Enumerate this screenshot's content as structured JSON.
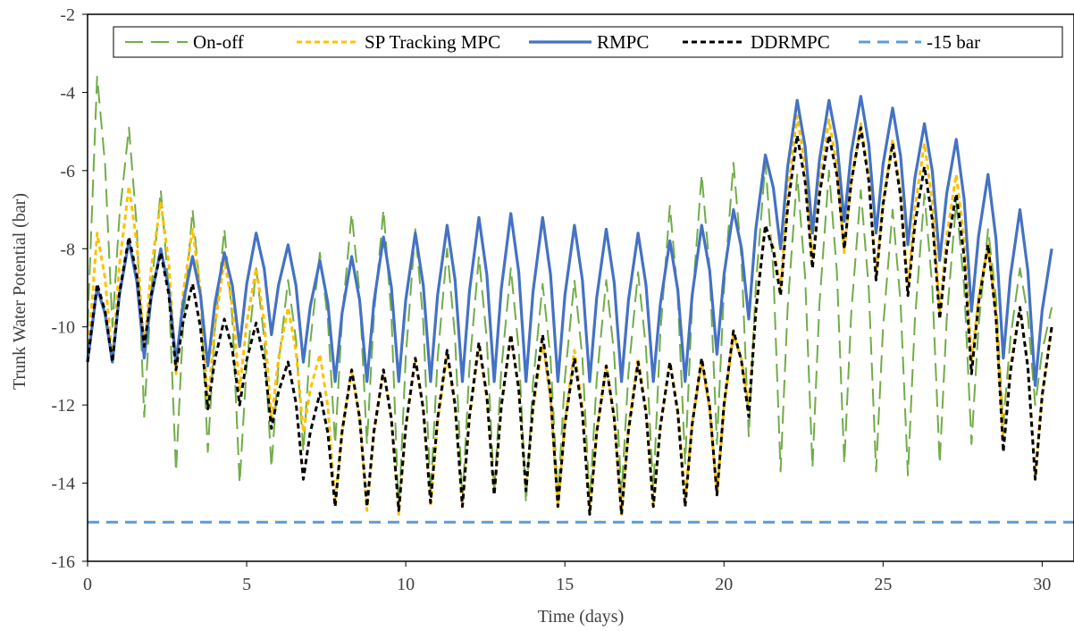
{
  "chart_data": {
    "type": "line",
    "title": "",
    "xlabel": "Time (days)",
    "ylabel": "Trunk Water Potential (bar)",
    "xlim": [
      0,
      31
    ],
    "ylim": [
      -16,
      -2
    ],
    "xticks": [
      "0",
      "5",
      "10",
      "15",
      "20",
      "25",
      "30"
    ],
    "xtick_values": [
      0,
      5,
      10,
      15,
      20,
      25,
      30
    ],
    "yticks": [
      "-2",
      "-4",
      "-6",
      "-8",
      "-10",
      "-12",
      "-14",
      "-16"
    ],
    "ytick_values": [
      -2,
      -4,
      -6,
      -8,
      -10,
      -12,
      -14,
      -16
    ],
    "grid": false,
    "legend_position": "top",
    "series": [
      {
        "name": "On-off",
        "color": "#70ad47",
        "dash": "long-dash",
        "peaks": [
          -3.6,
          -4.9,
          -6.5,
          -7.0,
          -7.5,
          -8.5,
          -8.8,
          -8.1,
          -7.1,
          -7.0,
          -7.5,
          -8.0,
          -8.2,
          -8.5,
          -8.9,
          -8.8,
          -8.8,
          -8.6,
          -6.9,
          -6.1,
          -5.8,
          -5.8,
          -6.1,
          -6.0,
          -6.5,
          -7.0,
          -6.6,
          -6.8,
          -7.5,
          -8.5,
          -9.5
        ],
        "troughs": [
          -10.0,
          -12.3,
          -13.7,
          -13.2,
          -14.0,
          -13.6,
          -13.2,
          -13.0,
          -13.0,
          -14.8,
          -14.3,
          -14.5,
          -14.3,
          -14.5,
          -14.4,
          -14.5,
          -14.3,
          -14.2,
          -13.5,
          -13.0,
          -12.8,
          -13.7,
          -13.6,
          -13.5,
          -13.7,
          -13.8,
          -13.5,
          -13.0,
          -12.5,
          -12.0
        ]
      },
      {
        "name": "SP Tracking MPC",
        "color": "#ffc000",
        "dash": "short-dash",
        "peaks": [
          -7.6,
          -6.4,
          -6.8,
          -7.5,
          -8.3,
          -8.5,
          -9.5,
          -10.7,
          -11.1,
          -11.1,
          -10.8,
          -10.7,
          -10.5,
          -10.2,
          -10.4,
          -10.6,
          -11.0,
          -10.8,
          -10.9,
          -10.9,
          -10.2,
          -7.4,
          -4.6,
          -4.7,
          -4.8,
          -5.2,
          -5.3,
          -6.1,
          -7.9,
          -9.5,
          -10.0
        ],
        "troughs": [
          -10.9,
          -10.6,
          -11.2,
          -12.0,
          -11.6,
          -12.4,
          -12.7,
          -14.5,
          -14.7,
          -14.8,
          -14.6,
          -14.6,
          -14.3,
          -14.2,
          -14.6,
          -14.7,
          -14.8,
          -14.6,
          -14.4,
          -14.3,
          -12.0,
          -9.0,
          -8.3,
          -8.1,
          -8.7,
          -9.0,
          -9.6,
          -10.9,
          -12.9,
          -13.8
        ]
      },
      {
        "name": "RMPC",
        "color": "#4472c4",
        "dash": "solid",
        "peaks": [
          -9.0,
          -7.8,
          -8.0,
          -8.2,
          -8.1,
          -7.6,
          -7.9,
          -8.3,
          -8.2,
          -7.7,
          -7.6,
          -7.4,
          -7.2,
          -7.1,
          -7.2,
          -7.4,
          -7.5,
          -7.6,
          -7.8,
          -7.4,
          -7.0,
          -5.6,
          -4.2,
          -4.2,
          -4.1,
          -4.4,
          -4.8,
          -5.2,
          -6.1,
          -7.0,
          -8.0
        ],
        "troughs": [
          -10.9,
          -10.8,
          -10.9,
          -11.0,
          -10.5,
          -10.2,
          -10.9,
          -11.4,
          -11.4,
          -11.4,
          -11.4,
          -11.4,
          -11.4,
          -11.4,
          -11.4,
          -11.4,
          -11.4,
          -11.4,
          -11.4,
          -10.7,
          -9.8,
          -8.0,
          -7.6,
          -7.3,
          -7.6,
          -7.9,
          -8.3,
          -9.6,
          -10.8,
          -11.5
        ]
      },
      {
        "name": "DDRMPC",
        "color": "#000000",
        "dash": "short-dash",
        "peaks": [
          -8.9,
          -7.7,
          -8.1,
          -8.9,
          -9.8,
          -9.9,
          -10.9,
          -11.7,
          -11.1,
          -11.1,
          -10.8,
          -10.6,
          -10.4,
          -10.2,
          -10.2,
          -10.8,
          -11.0,
          -10.9,
          -10.9,
          -10.8,
          -10.1,
          -7.4,
          -5.1,
          -5.1,
          -4.9,
          -5.3,
          -5.9,
          -6.6,
          -7.9,
          -9.5,
          -10.0
        ],
        "troughs": [
          -10.9,
          -10.5,
          -11.1,
          -12.1,
          -12.0,
          -12.6,
          -13.9,
          -14.6,
          -14.6,
          -14.7,
          -14.5,
          -14.6,
          -14.3,
          -14.2,
          -14.6,
          -14.8,
          -14.8,
          -14.6,
          -14.6,
          -14.3,
          -12.3,
          -9.2,
          -8.5,
          -8.0,
          -8.8,
          -9.2,
          -9.8,
          -11.2,
          -13.2,
          -13.9
        ]
      },
      {
        "name": "-15 bar",
        "color": "#5b9bd5",
        "dash": "medium-dash",
        "constant": -15
      }
    ]
  }
}
